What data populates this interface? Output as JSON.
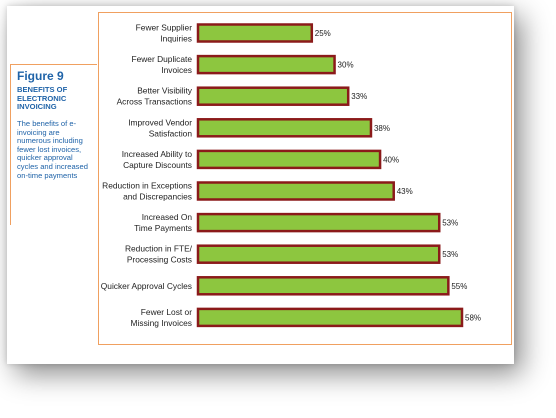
{
  "figure": {
    "title": "Figure 9",
    "heading": "BENEFITS OF ELECTRONIC INVOICING",
    "description": "The benefits of e-invoicing are numerous including fewer lost invoices, quicker approval cycles and increased on-time payments"
  },
  "colors": {
    "bar_fill": "#8dc63f",
    "bar_border": "#8b1a1a",
    "accent": "#1f63a8",
    "frame": "#f0a060"
  },
  "chart_data": {
    "type": "bar",
    "orientation": "horizontal",
    "categories": [
      [
        "Fewer Supplier",
        "Inquiries"
      ],
      [
        "Fewer Duplicate",
        "Invoices"
      ],
      [
        "Better Visibility",
        "Across Transactions"
      ],
      [
        "Improved Vendor",
        "Satisfaction"
      ],
      [
        "Increased Ability to",
        "Capture Discounts"
      ],
      [
        "Reduction in Exceptions",
        "and Discrepancies"
      ],
      [
        "Increased On",
        "Time Payments"
      ],
      [
        "Reduction in FTE/",
        "Processing Costs"
      ],
      [
        "Quicker Approval Cycles"
      ],
      [
        "Fewer Lost or",
        "Missing Invoices"
      ]
    ],
    "values": [
      25,
      30,
      33,
      38,
      40,
      43,
      53,
      53,
      55,
      58
    ],
    "value_labels": [
      "25%",
      "30%",
      "33%",
      "38%",
      "40%",
      "43%",
      "53%",
      "53%",
      "55%",
      "58%"
    ],
    "unit": "%",
    "xlim": [
      0,
      58
    ],
    "grid": false,
    "legend": "none"
  }
}
